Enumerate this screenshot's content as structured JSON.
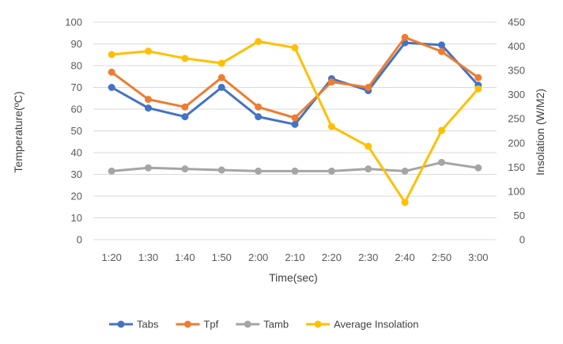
{
  "chart_data": {
    "type": "line",
    "title": "",
    "xlabel": "Time(sec)",
    "ylabel": "Temperature(ºC)",
    "y2label": "Insolation (W/M2)",
    "categories": [
      "1:20",
      "1:30",
      "1:40",
      "1:50",
      "2:00",
      "2:10",
      "2:20",
      "2:30",
      "2:40",
      "2:50",
      "3:00"
    ],
    "ylim": [
      0,
      100
    ],
    "yticks": [
      "0",
      "10",
      "20",
      "30",
      "40",
      "50",
      "60",
      "70",
      "80",
      "90",
      "100"
    ],
    "y2lim": [
      0,
      450
    ],
    "y2ticks": [
      "0",
      "50",
      "100",
      "150",
      "200",
      "250",
      "300",
      "350",
      "400",
      "450"
    ],
    "grid": true,
    "legend_position": "bottom",
    "series": [
      {
        "name": "Tabs",
        "axis": "left",
        "color": "#4472C4",
        "values": [
          70,
          60.5,
          56.5,
          70,
          56.5,
          53,
          74,
          68.5,
          90.5,
          89.5,
          71
        ]
      },
      {
        "name": "Tpf",
        "axis": "left",
        "color": "#ED7D31",
        "values": [
          77,
          64.5,
          61,
          74.5,
          61,
          56,
          72.5,
          70,
          93,
          86.5,
          74.5
        ]
      },
      {
        "name": "Tamb",
        "axis": "left",
        "color": "#A5A5A5",
        "values": [
          31.5,
          33,
          32.5,
          32,
          31.5,
          31.5,
          31.5,
          32.5,
          31.5,
          35.5,
          33
        ]
      },
      {
        "name": "Average Insolation",
        "axis": "right",
        "color": "#FFC000",
        "values": [
          383,
          390,
          375,
          365,
          410,
          397,
          234,
          193,
          77,
          226,
          312
        ]
      }
    ]
  }
}
